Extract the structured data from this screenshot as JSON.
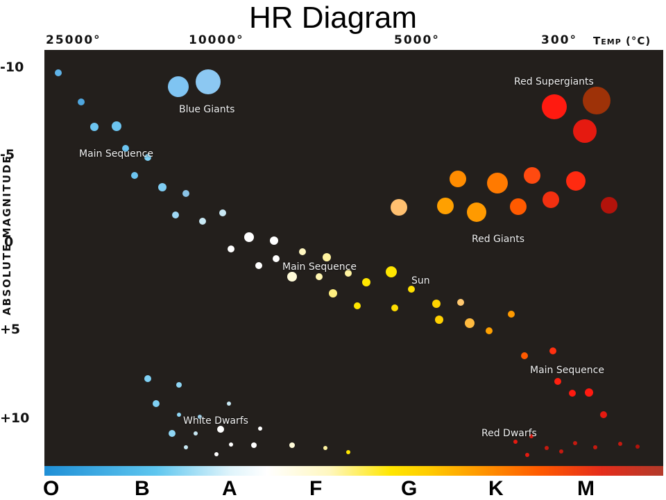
{
  "title": "HR Diagram",
  "temperature_axis": {
    "label": "Temp (°C)",
    "ticks": [
      "25000°",
      "10000°",
      "5000°",
      "300°"
    ]
  },
  "magnitude_axis": {
    "label": "ABSOLUTE MAGNITUDE",
    "ticks": [
      "-10",
      "-5",
      "0",
      "+5",
      "+10"
    ]
  },
  "spectral_classes": [
    "O",
    "B",
    "A",
    "F",
    "G",
    "K",
    "M"
  ],
  "region_labels": {
    "blue_giants": "Blue Giants",
    "main_sequence_upper": "Main Sequence",
    "main_sequence_middle": "Main Sequence",
    "main_sequence_lower": "Main Sequence",
    "sun": "Sun",
    "red_giants": "Red Giants",
    "red_supergiants": "Red Supergiants",
    "white_dwarfs": "White Dwarfs",
    "red_dwarfs": "Red Dwarfs"
  },
  "colors": {
    "background": "#231f1c",
    "blue": "#7cc4f0",
    "white": "#ffffff",
    "yellow": "#ffe600",
    "orange": "#ff9a00",
    "red": "#e52d1b"
  }
}
